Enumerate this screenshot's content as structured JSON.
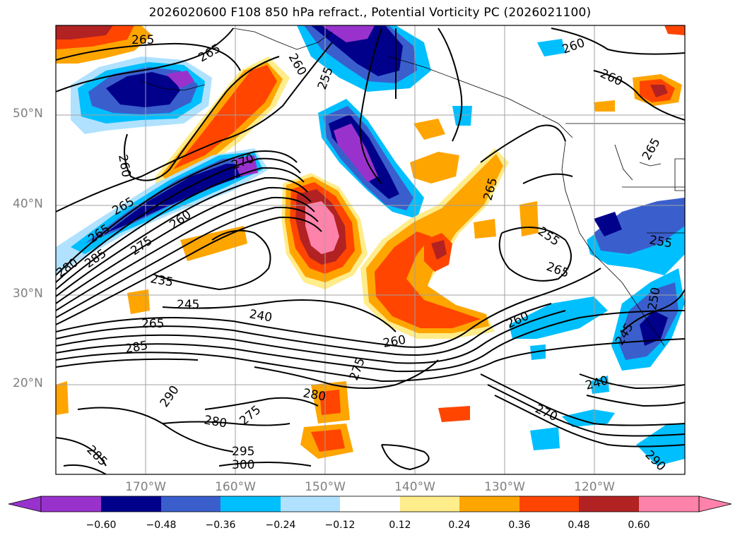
{
  "title": "2026020600 F108 850 hPa refract., Potential Vorticity PC (2026021100)",
  "axes": {
    "lat_labels": [
      "50°N",
      "40°N",
      "30°N",
      "20°N"
    ],
    "lon_labels": [
      "170°W",
      "160°W",
      "150°W",
      "140°W",
      "130°W",
      "120°W"
    ],
    "label_color": "#808080"
  },
  "colorbar": {
    "ticks": [
      "-0.60",
      "-0.48",
      "-0.36",
      "-0.24",
      "-0.12",
      "0.12",
      "0.24",
      "0.36",
      "0.48",
      "0.60"
    ],
    "colors": [
      "#9932cc",
      "#00008b",
      "#3a5fcd",
      "#00bfff",
      "#b0e2ff",
      "#ffffff",
      "#ffec8b",
      "#ffa500",
      "#ff4500",
      "#b22222",
      "#ff82ab"
    ],
    "extend": "both"
  },
  "contour_labels": [
    "265",
    "265",
    "260",
    "255",
    "260",
    "260",
    "260",
    "265",
    "260",
    "265",
    "270",
    "275",
    "280",
    "285",
    "235",
    "245",
    "240",
    "265",
    "285",
    "260",
    "275",
    "265",
    "255",
    "265",
    "265",
    "255",
    "260",
    "250",
    "245",
    "240",
    "270",
    "290",
    "275",
    "280",
    "280",
    "295",
    "300",
    "285",
    "290"
  ]
}
